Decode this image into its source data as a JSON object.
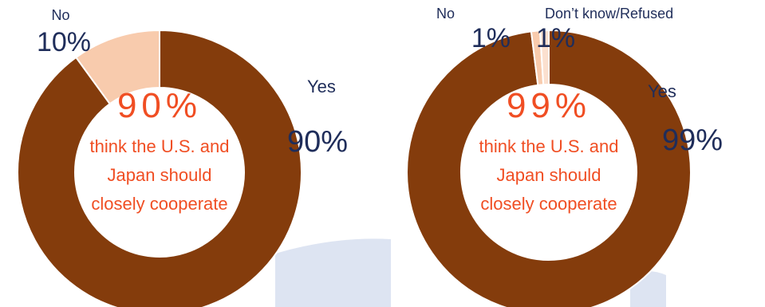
{
  "chart_data": [
    {
      "type": "pie",
      "donut": true,
      "categories": [
        "Yes",
        "No"
      ],
      "values": [
        90,
        10
      ],
      "value_labels": [
        "90%",
        "10%"
      ],
      "colors": [
        "#843c0c",
        "#f8cbad"
      ],
      "center_label": "think the U.S. and Japan should closely cooperate"
    },
    {
      "type": "pie",
      "donut": true,
      "categories": [
        "Yes",
        "No",
        "Don’t know/Refused"
      ],
      "values": [
        99,
        1,
        1
      ],
      "value_labels": [
        "99%",
        "1%",
        "1%"
      ],
      "colors": [
        "#843c0c",
        "#f8cbad",
        "#fbe0cf"
      ],
      "center_label": "think the U.S. and Japan should closely cooperate"
    }
  ]
}
